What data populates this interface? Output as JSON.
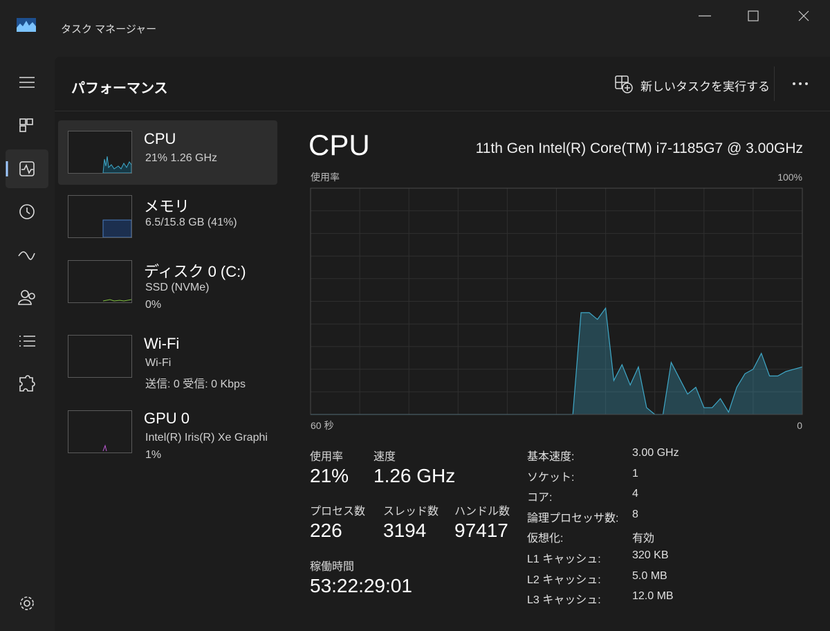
{
  "window_title": "タスク マネージャー",
  "page_title": "パフォーマンス",
  "run_task": "新しいタスクを実行する",
  "resources": [
    {
      "name": "CPU",
      "lines": [
        "21%  1.26 GHz"
      ]
    },
    {
      "name": "メモリ",
      "lines": [
        "6.5/15.8 GB (41%)"
      ]
    },
    {
      "name": "ディスク 0 (C:)",
      "lines": [
        "SSD (NVMe)",
        "0%"
      ]
    },
    {
      "name": "Wi-Fi",
      "lines": [
        "Wi-Fi",
        "送信: 0 受信: 0 Kbps"
      ]
    },
    {
      "name": "GPU 0",
      "lines": [
        "Intel(R) Iris(R) Xe Graphi",
        "1%"
      ]
    }
  ],
  "detail": {
    "title": "CPU",
    "model": "11th Gen Intel(R) Core(TM) i7-1185G7 @ 3.00GHz"
  },
  "chart_data": {
    "type": "area",
    "y_label": "使用率",
    "x_labels": [
      "60 秒",
      "0"
    ],
    "ylim": [
      0,
      100
    ],
    "yticks": [
      {
        "value": 100,
        "label": "100%"
      }
    ],
    "color": "#3fa9c9",
    "values": [
      0,
      0,
      0,
      0,
      0,
      0,
      0,
      0,
      0,
      0,
      0,
      0,
      0,
      0,
      0,
      0,
      0,
      0,
      0,
      0,
      0,
      0,
      0,
      0,
      0,
      0,
      0,
      0,
      0,
      0,
      0,
      0,
      0,
      45,
      45,
      42,
      47,
      15,
      22,
      13,
      21,
      3,
      0,
      0,
      23,
      16,
      9,
      12,
      3,
      3,
      7,
      1,
      12,
      18,
      20,
      27,
      17,
      17,
      19,
      20,
      21
    ]
  },
  "stats": [
    {
      "label": "使用率",
      "value": "21%"
    },
    {
      "label": "速度",
      "value": "1.26 GHz"
    },
    {
      "label": "プロセス数",
      "value": "226"
    },
    {
      "label": "スレッド数",
      "value": "3194"
    },
    {
      "label": "ハンドル数",
      "value": "97417"
    },
    {
      "label": "稼働時間",
      "value": "53:22:29:01"
    }
  ],
  "specs": [
    [
      "基本速度:",
      "3.00 GHz"
    ],
    [
      "ソケット:",
      "1"
    ],
    [
      "コア:",
      "4"
    ],
    [
      "論理プロセッサ数:",
      "8"
    ],
    [
      "仮想化:",
      "有効"
    ],
    [
      "L1 キャッシュ:",
      "320 KB"
    ],
    [
      "L2 キャッシュ:",
      "5.0 MB"
    ],
    [
      "L3 キャッシュ:",
      "12.0 MB"
    ]
  ]
}
